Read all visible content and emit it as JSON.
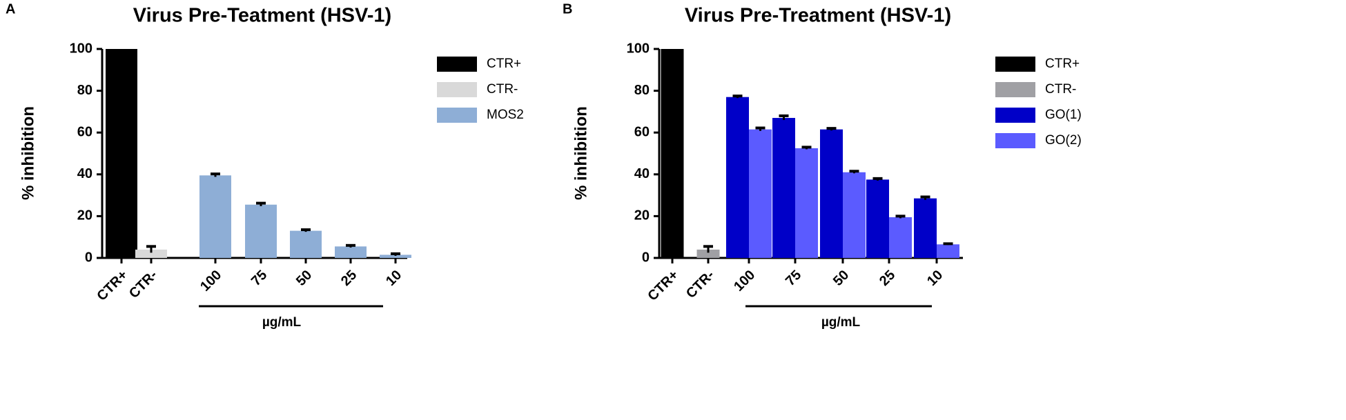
{
  "chart_data": [
    {
      "type": "bar",
      "panel_label": "A",
      "title": "Virus Pre-Teatment (HSV-1)",
      "ylabel": "% inhibition",
      "xlabel": "µg/mL",
      "categories": [
        "CTR+",
        "CTR-",
        "100",
        "75",
        "50",
        "25",
        "10"
      ],
      "series": [
        {
          "name": "CTR+",
          "color": "#000000",
          "values": [
            100,
            null,
            null,
            null,
            null,
            null,
            null
          ],
          "errors": [
            null,
            null,
            null,
            null,
            null,
            null,
            null
          ]
        },
        {
          "name": "CTR-",
          "color": "#d9d9d9",
          "values": [
            null,
            4,
            null,
            null,
            null,
            null,
            null
          ],
          "errors": [
            null,
            1.5,
            null,
            null,
            null,
            null,
            null
          ]
        },
        {
          "name": "MOS2",
          "color": "#8eaed6",
          "values": [
            null,
            null,
            39.5,
            25.5,
            13,
            5.5,
            1.5
          ],
          "errors": [
            null,
            null,
            0.7,
            0.7,
            0.5,
            0.5,
            0.5
          ]
        }
      ],
      "ylim": [
        0,
        100
      ],
      "yticks": [
        0,
        20,
        40,
        60,
        80,
        100
      ],
      "legend": "right"
    },
    {
      "type": "bar",
      "panel_label": "B",
      "title": "Virus Pre-Treatment (HSV-1)",
      "ylabel": "% inhibition",
      "xlabel": "µg/mL",
      "categories": [
        "CTR+",
        "CTR-",
        "100",
        "75",
        "50",
        "25",
        "10"
      ],
      "series": [
        {
          "name": "CTR+",
          "color": "#000000",
          "values": [
            100,
            null,
            null,
            null,
            null,
            null,
            null
          ],
          "errors": [
            null,
            null,
            null,
            null,
            null,
            null,
            null
          ]
        },
        {
          "name": "CTR-",
          "color": "#a0a0a4",
          "values": [
            null,
            4,
            null,
            null,
            null,
            null,
            null
          ],
          "errors": [
            null,
            1.5,
            null,
            null,
            null,
            null,
            null
          ]
        },
        {
          "name": "GO(1)",
          "color": "#0000c8",
          "values": [
            null,
            null,
            77,
            67,
            61.5,
            37.5,
            28.5
          ],
          "errors": [
            null,
            null,
            0.5,
            1,
            0.5,
            0.5,
            0.7
          ]
        },
        {
          "name": "GO(2)",
          "color": "#5b5bff",
          "values": [
            null,
            null,
            61.5,
            52.5,
            41,
            19.5,
            6.5
          ],
          "errors": [
            null,
            null,
            0.7,
            0.5,
            0.5,
            0.5,
            0.3
          ]
        }
      ],
      "ylim": [
        0,
        100
      ],
      "yticks": [
        0,
        20,
        40,
        60,
        80,
        100
      ],
      "legend": "right"
    }
  ]
}
